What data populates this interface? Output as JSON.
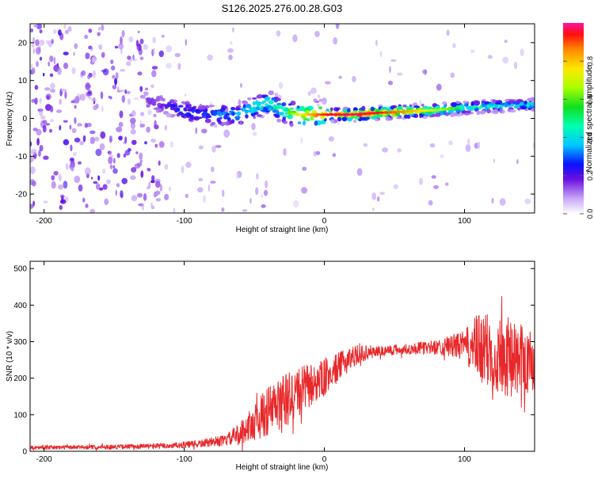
{
  "title": "S126.2025.276.00.28.G03",
  "chart_data": [
    {
      "type": "heatmap",
      "name": "spectrogram",
      "xlabel": "Height of straight line (km)",
      "ylabel": "Frequency (Hz)",
      "xlim": [
        -210,
        150
      ],
      "ylim": [
        -25,
        25
      ],
      "xticks": [
        -200,
        -100,
        0,
        100
      ],
      "xtick_labels": [
        "-200",
        "-100",
        "0",
        "100"
      ],
      "yticks": [
        -20,
        -10,
        0,
        10,
        20
      ],
      "ytick_labels": [
        "-20",
        "-10",
        "0",
        "10",
        "20"
      ],
      "colorbar": {
        "label": "Normalized spectral amplitude",
        "range": [
          0,
          1
        ],
        "ticks": [
          0.0,
          0.2,
          0.4,
          0.6,
          0.8
        ],
        "tick_labels": [
          "0.0",
          "0.2",
          "0.4",
          "0.6",
          "0.8"
        ]
      },
      "ridge": {
        "x": [
          -130,
          -120,
          -110,
          -100,
          -90,
          -80,
          -70,
          -60,
          -50,
          -40,
          -30,
          -20,
          -10,
          0,
          20,
          40,
          60,
          80,
          100,
          120,
          140,
          150
        ],
        "freq": [
          5,
          4,
          3,
          2,
          1,
          1,
          1,
          1,
          3,
          4,
          2,
          1,
          1,
          1,
          1,
          1.5,
          1.8,
          2.2,
          2.8,
          3.2,
          3.5,
          3.6
        ],
        "amplitude": [
          0.15,
          0.2,
          0.25,
          0.3,
          0.3,
          0.35,
          0.35,
          0.4,
          0.45,
          0.5,
          0.55,
          0.7,
          0.85,
          0.95,
          1.0,
          0.95,
          0.85,
          0.7,
          0.55,
          0.5,
          0.45,
          0.45
        ]
      }
    },
    {
      "type": "line",
      "name": "snr",
      "xlabel": "Height of straight line (km)",
      "ylabel": "SNR (10 * v/v)",
      "xlim": [
        -210,
        150
      ],
      "ylim": [
        0,
        520
      ],
      "xticks": [
        -200,
        -100,
        0,
        100
      ],
      "xtick_labels": [
        "-200",
        "-100",
        "0",
        "100"
      ],
      "yticks": [
        0,
        100,
        200,
        300,
        400,
        500
      ],
      "ytick_labels": [
        "0",
        "100",
        "200",
        "300",
        "400",
        "500"
      ],
      "color": "#e8282a",
      "envelope": {
        "x": [
          -210,
          -150,
          -110,
          -90,
          -70,
          -60,
          -50,
          -40,
          -30,
          -20,
          -10,
          0,
          10,
          20,
          30,
          40,
          60,
          80,
          100,
          110,
          120,
          130,
          140,
          150
        ],
        "mean": [
          10,
          12,
          15,
          20,
          30,
          50,
          80,
          110,
          130,
          160,
          180,
          200,
          230,
          260,
          270,
          275,
          280,
          285,
          290,
          280,
          270,
          260,
          250,
          240
        ],
        "spread": [
          5,
          6,
          8,
          10,
          15,
          30,
          50,
          70,
          80,
          70,
          60,
          50,
          40,
          30,
          20,
          15,
          15,
          20,
          40,
          100,
          110,
          110,
          100,
          90
        ]
      }
    }
  ]
}
